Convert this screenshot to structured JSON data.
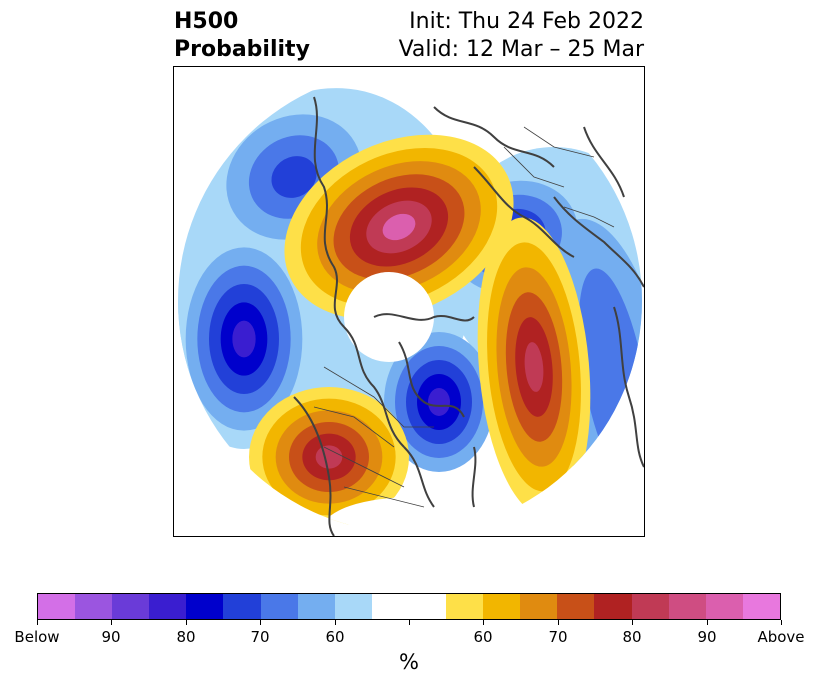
{
  "title": {
    "left_line1": "H500",
    "left_line2": "Probability",
    "right_line1": "Init: Thu 24 Feb 2022",
    "right_line2": "Valid: 12 Mar – 25 Mar"
  },
  "colorbar": {
    "colors": [
      "#d36fe7",
      "#9b55e0",
      "#6a3bd8",
      "#3a1ed0",
      "#0000cc",
      "#2240d8",
      "#4a78e8",
      "#74aef0",
      "#a8d8f8",
      "#ffffff",
      "#ffffff",
      "#fee048",
      "#f2b600",
      "#e08b10",
      "#c85018",
      "#b02222",
      "#c03a55",
      "#cf4d82",
      "#db5fae",
      "#e878de"
    ],
    "labels": [
      "Below",
      "90",
      "80",
      "70",
      "60",
      "",
      "60",
      "70",
      "80",
      "90",
      "Above"
    ],
    "unit": "%"
  },
  "map_colors": {
    "blue_light": "#a8d8f8",
    "blue_mid": "#74aef0",
    "blue_med": "#4a78e8",
    "blue_strong": "#2240d8",
    "blue_deep": "#0000cc",
    "blue_core": "#3a1ed0",
    "yellow": "#fee048",
    "gold": "#f2b600",
    "orange": "#e08b10",
    "rust": "#c85018",
    "red": "#b02222",
    "rose": "#c03a55",
    "pink": "#db5fae",
    "coast": "#404040"
  }
}
